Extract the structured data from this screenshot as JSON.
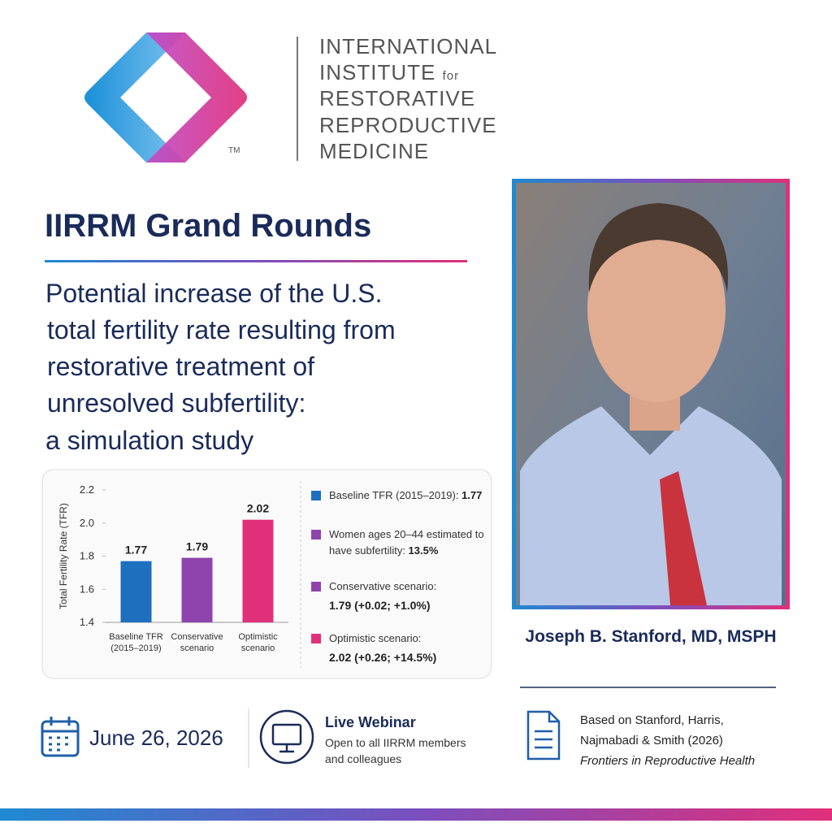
{
  "header": {
    "org_lines": [
      "INTERNATIONAL",
      "INSTITUTE",
      "RESTORATIVE",
      "REPRODUCTIVE",
      "MEDICINE"
    ],
    "org_for": "for",
    "trademark": "TM"
  },
  "event_title": "IIRRM Grand Rounds",
  "talk_title_lines": [
    "Potential increase of the U.S.",
    "total fertility rate resulting from",
    "restorative treatment of",
    "unresolved subfertility:",
    "a simulation study"
  ],
  "chart_data": {
    "type": "bar",
    "y_label": "Total Fertility Rate (TFR)",
    "categories": [
      "Baseline TFR (2015–2019)",
      "Conservative scenario",
      "Optimistic scenario"
    ],
    "values": [
      1.77,
      1.79,
      2.02
    ],
    "colors": [
      "#1f6fbf",
      "#8e44ad",
      "#e0307a"
    ],
    "ylim": [
      1.4,
      2.2
    ],
    "yticks": [
      1.4,
      1.6,
      1.8,
      {
        "value": 2,
        "label": "2.0"
      },
      2.2
    ],
    "legend": [
      {
        "text": "Baseline TFR (2015–2019): ",
        "bold": "1.77",
        "color": "#1f6fbf"
      },
      {
        "text": "Women ages 20–44 estimated to have subfertility: ",
        "bold": "13.5%",
        "color": "#8e44ad"
      },
      {
        "text": "Conservative scenario:",
        "bold": "1.79 (+0.02; +1.0%)",
        "color": "#8e44ad"
      },
      {
        "text": "Optimistic scenario:",
        "bold": "2.02 (+0.26; +14.5%)",
        "color": "#e0307a"
      }
    ]
  },
  "speaker": "Joseph B. Stanford, MD, MSPH",
  "date": "June 26, 2026",
  "webinar": {
    "title": "Live Webinar",
    "lines": [
      "Open to all IIRRM members",
      "and colleagues"
    ]
  },
  "reference": {
    "lines": [
      "Based on Stanford, Harris,",
      "Najmabadi & Smith (2026)"
    ],
    "journal": "Frontiers in Reproductive Health"
  }
}
